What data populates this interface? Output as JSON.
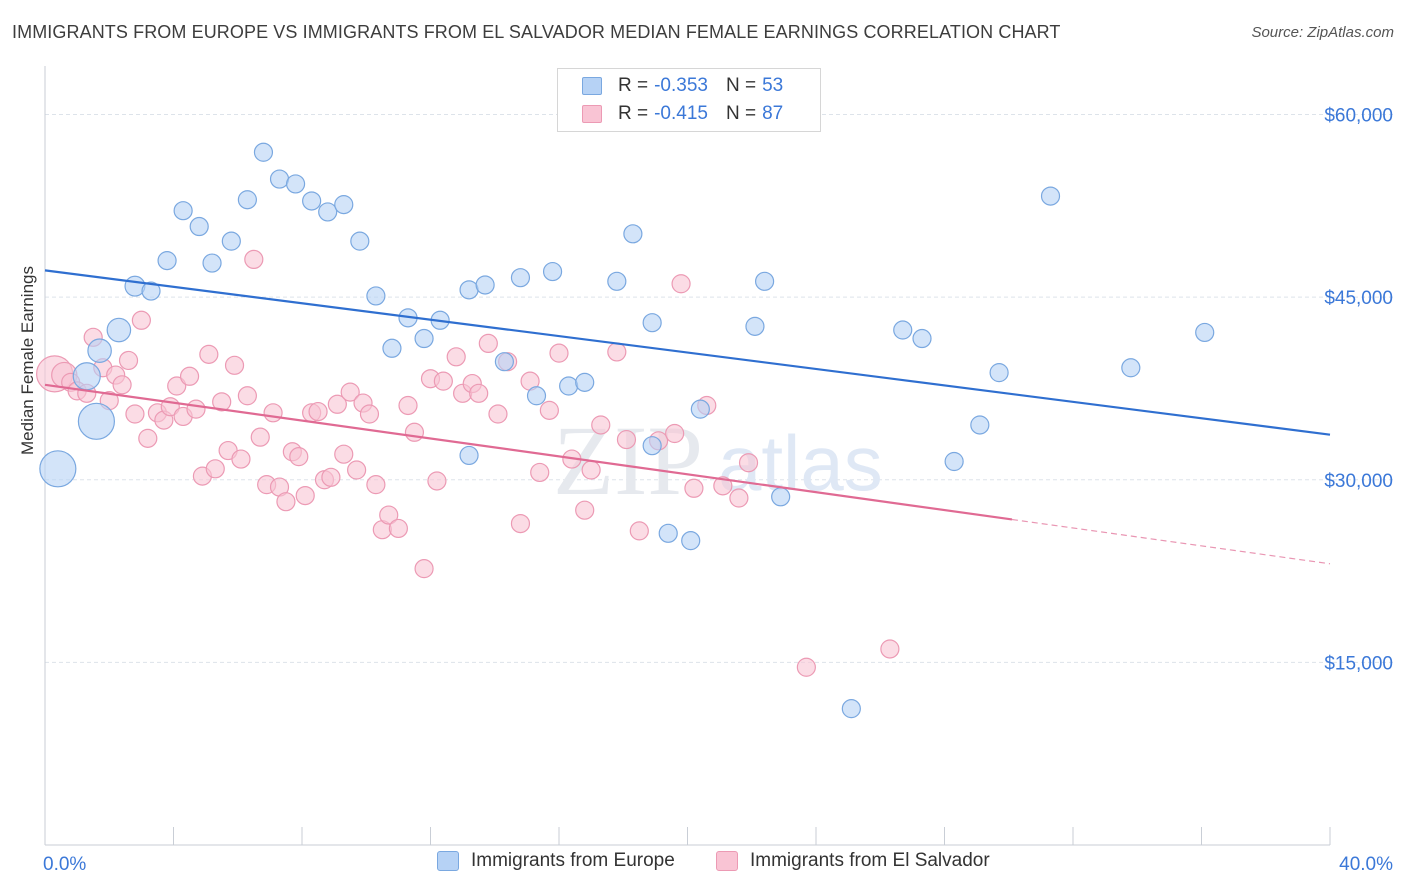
{
  "header": {
    "title": "IMMIGRANTS FROM EUROPE VS IMMIGRANTS FROM EL SALVADOR MEDIAN FEMALE EARNINGS CORRELATION CHART",
    "source": "Source: ZipAtlas.com"
  },
  "watermark": {
    "zip": "ZIP",
    "atlas": "atlas"
  },
  "legend": {
    "series1": {
      "r_label": "R =",
      "r_value": "-0.353",
      "n_label": "N =",
      "n_value": "53"
    },
    "series2": {
      "r_label": "R =",
      "r_value": "-0.415",
      "n_label": "N =",
      "n_value": "87"
    }
  },
  "colors": {
    "europe_fill": "#b6d2f5",
    "europe_stroke": "#7aa8e0",
    "europe_line": "#2f6fd0",
    "salvador_fill": "#f9c4d4",
    "salvador_stroke": "#ec9ab4",
    "salvador_line": "#e06a93",
    "grid": "#dde3ea",
    "axis_text": "#3b78d8"
  },
  "chart_data": {
    "type": "scatter",
    "ylabel": "Median Female Earnings",
    "xlim": [
      0,
      40
    ],
    "ylim": [
      0,
      63000
    ],
    "x_tick_labels": {
      "min": "0.0%",
      "max": "40.0%"
    },
    "y_ticks": [
      {
        "value": 15000,
        "label": "$15,000"
      },
      {
        "value": 30000,
        "label": "$30,000"
      },
      {
        "value": 45000,
        "label": "$45,000"
      },
      {
        "value": 60000,
        "label": "$60,000"
      }
    ],
    "series": [
      {
        "name": "Immigrants from Europe",
        "trend": {
          "x0": 0,
          "y0": 47200,
          "x1": 40,
          "y1": 33700,
          "solid_until": 40
        },
        "points": [
          [
            0.4,
            30900,
            2
          ],
          [
            1.6,
            34800,
            2
          ],
          [
            1.3,
            38500,
            1.5
          ],
          [
            1.7,
            40600,
            1.3
          ],
          [
            2.3,
            42300,
            1.3
          ],
          [
            2.8,
            45900,
            1.1
          ],
          [
            3.3,
            45500,
            1
          ],
          [
            3.8,
            48000,
            1
          ],
          [
            4.3,
            52100,
            1
          ],
          [
            4.8,
            50800,
            1
          ],
          [
            5.2,
            47800,
            1
          ],
          [
            5.8,
            49600,
            1
          ],
          [
            6.3,
            53000,
            1
          ],
          [
            6.8,
            56900,
            1
          ],
          [
            7.3,
            54700,
            1
          ],
          [
            7.8,
            54300,
            1
          ],
          [
            8.3,
            52900,
            1
          ],
          [
            8.8,
            52000,
            1
          ],
          [
            9.3,
            52600,
            1
          ],
          [
            9.8,
            49600,
            1
          ],
          [
            10.3,
            45100,
            1
          ],
          [
            10.8,
            40800,
            1
          ],
          [
            11.3,
            43300,
            1
          ],
          [
            11.8,
            41600,
            1
          ],
          [
            12.3,
            43100,
            1
          ],
          [
            13.2,
            32000,
            1
          ],
          [
            13.2,
            45600,
            1
          ],
          [
            13.7,
            46000,
            1
          ],
          [
            14.3,
            39700,
            1
          ],
          [
            14.8,
            46600,
            1
          ],
          [
            15.3,
            36900,
            1
          ],
          [
            15.8,
            47100,
            1
          ],
          [
            16.3,
            37700,
            1
          ],
          [
            16.8,
            38000,
            1
          ],
          [
            17.8,
            46300,
            1
          ],
          [
            18.3,
            50200,
            1
          ],
          [
            18.9,
            42900,
            1
          ],
          [
            18.9,
            32800,
            1
          ],
          [
            19.4,
            25600,
            1
          ],
          [
            20.1,
            25000,
            1
          ],
          [
            20.4,
            35800,
            1
          ],
          [
            22.1,
            42600,
            1
          ],
          [
            22.4,
            46300,
            1
          ],
          [
            22.9,
            28600,
            1
          ],
          [
            25.1,
            11200,
            1
          ],
          [
            26.7,
            42300,
            1
          ],
          [
            27.3,
            41600,
            1
          ],
          [
            28.3,
            31500,
            1
          ],
          [
            29.1,
            34500,
            1
          ],
          [
            29.7,
            38800,
            1
          ],
          [
            31.3,
            53300,
            1
          ],
          [
            33.8,
            39200,
            1
          ],
          [
            36.1,
            42100,
            1
          ]
        ]
      },
      {
        "name": "Immigrants from El Salvador",
        "trend": {
          "x0": 0,
          "y0": 37800,
          "x1": 40,
          "y1": 23100,
          "solid_until": 30.1
        },
        "points": [
          [
            0.3,
            38700,
            2
          ],
          [
            0.6,
            38600,
            1.4
          ],
          [
            0.8,
            38000,
            1
          ],
          [
            1.0,
            37300,
            1
          ],
          [
            1.3,
            37100,
            1
          ],
          [
            1.5,
            41700,
            1
          ],
          [
            1.8,
            39200,
            1
          ],
          [
            2.0,
            36500,
            1
          ],
          [
            2.2,
            38600,
            1
          ],
          [
            2.4,
            37800,
            1
          ],
          [
            2.6,
            39800,
            1
          ],
          [
            2.8,
            35400,
            1
          ],
          [
            3.0,
            43100,
            1
          ],
          [
            3.2,
            33400,
            1
          ],
          [
            3.5,
            35500,
            1
          ],
          [
            3.7,
            34900,
            1
          ],
          [
            3.9,
            36000,
            1
          ],
          [
            4.1,
            37700,
            1
          ],
          [
            4.3,
            35200,
            1
          ],
          [
            4.5,
            38500,
            1
          ],
          [
            4.7,
            35800,
            1
          ],
          [
            4.9,
            30300,
            1
          ],
          [
            5.1,
            40300,
            1
          ],
          [
            5.3,
            30900,
            1
          ],
          [
            5.5,
            36400,
            1
          ],
          [
            5.7,
            32400,
            1
          ],
          [
            5.9,
            39400,
            1
          ],
          [
            6.1,
            31700,
            1
          ],
          [
            6.3,
            36900,
            1
          ],
          [
            6.5,
            48100,
            1
          ],
          [
            6.7,
            33500,
            1
          ],
          [
            6.9,
            29600,
            1
          ],
          [
            7.1,
            35500,
            1
          ],
          [
            7.3,
            29400,
            1
          ],
          [
            7.5,
            28200,
            1
          ],
          [
            7.7,
            32300,
            1
          ],
          [
            7.9,
            31900,
            1
          ],
          [
            8.1,
            28700,
            1
          ],
          [
            8.3,
            35500,
            1
          ],
          [
            8.5,
            35600,
            1
          ],
          [
            8.7,
            30000,
            1
          ],
          [
            8.9,
            30200,
            1
          ],
          [
            9.1,
            36200,
            1
          ],
          [
            9.3,
            32100,
            1
          ],
          [
            9.5,
            37200,
            1
          ],
          [
            9.7,
            30800,
            1
          ],
          [
            9.9,
            36300,
            1
          ],
          [
            10.1,
            35400,
            1
          ],
          [
            10.3,
            29600,
            1
          ],
          [
            10.5,
            25900,
            1
          ],
          [
            10.7,
            27100,
            1
          ],
          [
            11.0,
            26000,
            1
          ],
          [
            11.3,
            36100,
            1
          ],
          [
            11.5,
            33900,
            1
          ],
          [
            11.8,
            22700,
            1
          ],
          [
            12.0,
            38300,
            1
          ],
          [
            12.2,
            29900,
            1
          ],
          [
            12.4,
            38100,
            1
          ],
          [
            12.8,
            40100,
            1
          ],
          [
            13.0,
            37100,
            1
          ],
          [
            13.3,
            37900,
            1
          ],
          [
            13.5,
            37100,
            1
          ],
          [
            13.8,
            41200,
            1
          ],
          [
            14.1,
            35400,
            1
          ],
          [
            14.4,
            39700,
            1
          ],
          [
            14.8,
            26400,
            1
          ],
          [
            15.1,
            38100,
            1
          ],
          [
            15.4,
            30600,
            1
          ],
          [
            15.7,
            35700,
            1
          ],
          [
            16.0,
            40400,
            1
          ],
          [
            16.4,
            31700,
            1
          ],
          [
            16.8,
            27500,
            1
          ],
          [
            17.0,
            30800,
            1
          ],
          [
            17.3,
            34500,
            1
          ],
          [
            17.8,
            40500,
            1
          ],
          [
            18.1,
            33300,
            1
          ],
          [
            18.5,
            25800,
            1
          ],
          [
            19.1,
            33200,
            1
          ],
          [
            19.6,
            33800,
            1
          ],
          [
            19.8,
            46100,
            1
          ],
          [
            20.2,
            29300,
            1
          ],
          [
            20.6,
            36100,
            1
          ],
          [
            21.1,
            29500,
            1
          ],
          [
            21.6,
            28500,
            1
          ],
          [
            21.9,
            31400,
            1
          ],
          [
            23.7,
            14600,
            1
          ],
          [
            26.3,
            16100,
            1
          ]
        ]
      }
    ]
  }
}
